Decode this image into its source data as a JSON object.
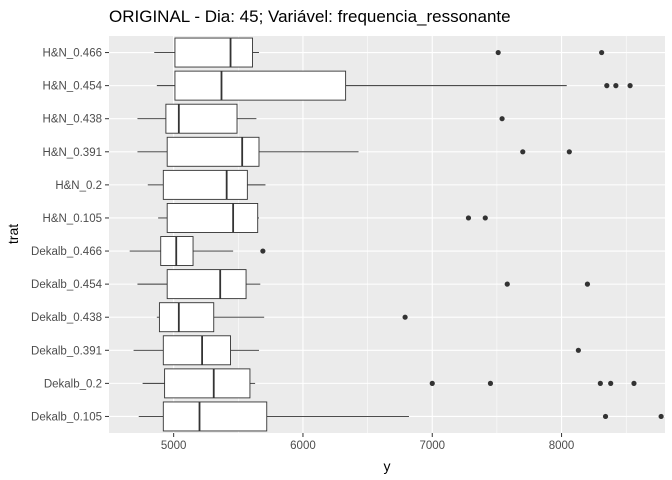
{
  "chart_data": {
    "type": "boxplot",
    "orientation": "horizontal",
    "title": "ORIGINAL - Dia: 45; Variável: frequencia_ressonante",
    "xlabel": "y",
    "ylabel": "trat",
    "xlim": [
      4500,
      8800
    ],
    "xticks": [
      5000,
      6000,
      7000,
      8000
    ],
    "grid": true,
    "panel_background": "#ebebeb",
    "grid_color": "#ffffff",
    "box_fill": "#ffffff",
    "line_color": "#333333",
    "categories": [
      "H&N_0.466",
      "H&N_0.454",
      "H&N_0.438",
      "H&N_0.391",
      "H&N_0.2",
      "H&N_0.105",
      "Dekalb_0.466",
      "Dekalb_0.454",
      "Dekalb_0.438",
      "Dekalb_0.391",
      "Dekalb_0.2",
      "Dekalb_0.105"
    ],
    "boxes": [
      {
        "category": "H&N_0.466",
        "whisker_low": 4850,
        "q1": 5010,
        "median": 5440,
        "q3": 5610,
        "whisker_high": 5660,
        "outliers": [
          7510,
          8310
        ]
      },
      {
        "category": "H&N_0.454",
        "whisker_low": 4870,
        "q1": 5010,
        "median": 5370,
        "q3": 6330,
        "whisker_high": 8040,
        "outliers": [
          8350,
          8420,
          8530
        ]
      },
      {
        "category": "H&N_0.438",
        "whisker_low": 4720,
        "q1": 4940,
        "median": 5040,
        "q3": 5490,
        "whisker_high": 5640,
        "outliers": [
          7540
        ]
      },
      {
        "category": "H&N_0.391",
        "whisker_low": 4720,
        "q1": 4950,
        "median": 5530,
        "q3": 5660,
        "whisker_high": 6430,
        "outliers": [
          7700,
          8060
        ]
      },
      {
        "category": "H&N_0.2",
        "whisker_low": 4800,
        "q1": 4920,
        "median": 5410,
        "q3": 5570,
        "whisker_high": 5710,
        "outliers": []
      },
      {
        "category": "H&N_0.105",
        "whisker_low": 4880,
        "q1": 4950,
        "median": 5460,
        "q3": 5650,
        "whisker_high": 5660,
        "outliers": [
          7280,
          7410
        ]
      },
      {
        "category": "Dekalb_0.466",
        "whisker_low": 4660,
        "q1": 4900,
        "median": 5020,
        "q3": 5150,
        "whisker_high": 5460,
        "outliers": [
          5690
        ]
      },
      {
        "category": "Dekalb_0.454",
        "whisker_low": 4720,
        "q1": 4950,
        "median": 5360,
        "q3": 5560,
        "whisker_high": 5670,
        "outliers": [
          7580,
          8200
        ]
      },
      {
        "category": "Dekalb_0.438",
        "whisker_low": 4870,
        "q1": 4890,
        "median": 5040,
        "q3": 5310,
        "whisker_high": 5700,
        "outliers": [
          6790
        ]
      },
      {
        "category": "Dekalb_0.391",
        "whisker_low": 4690,
        "q1": 4920,
        "median": 5220,
        "q3": 5440,
        "whisker_high": 5660,
        "outliers": [
          8130
        ]
      },
      {
        "category": "Dekalb_0.2",
        "whisker_low": 4760,
        "q1": 4930,
        "median": 5310,
        "q3": 5590,
        "whisker_high": 5630,
        "outliers": [
          7000,
          7450,
          8300,
          8380,
          8560
        ]
      },
      {
        "category": "Dekalb_0.105",
        "whisker_low": 4730,
        "q1": 4920,
        "median": 5200,
        "q3": 5720,
        "whisker_high": 6820,
        "outliers": [
          8340,
          8770
        ]
      }
    ]
  }
}
